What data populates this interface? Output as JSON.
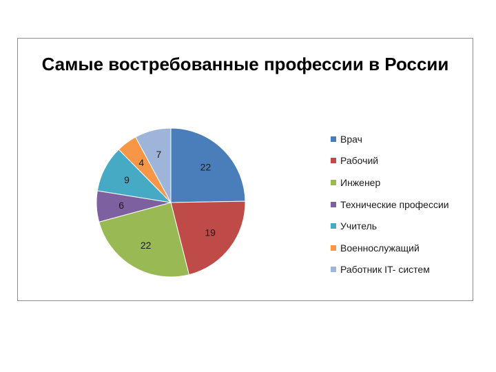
{
  "chart_data": {
    "type": "pie",
    "title": "Самые востребованные профессии в России",
    "categories": [
      "Врач",
      "Рабочий",
      "Инженер",
      "Технические профессии",
      "Учитель",
      "Военнослужащий",
      "Работник IT- систем"
    ],
    "values": [
      22,
      19,
      22,
      6,
      9,
      4,
      7
    ],
    "colors": [
      "#4a7ebb",
      "#be4b48",
      "#98b954",
      "#7d60a0",
      "#46aac5",
      "#f79646",
      "#9eb5d9"
    ],
    "legend_position": "right",
    "data_labels": true
  }
}
